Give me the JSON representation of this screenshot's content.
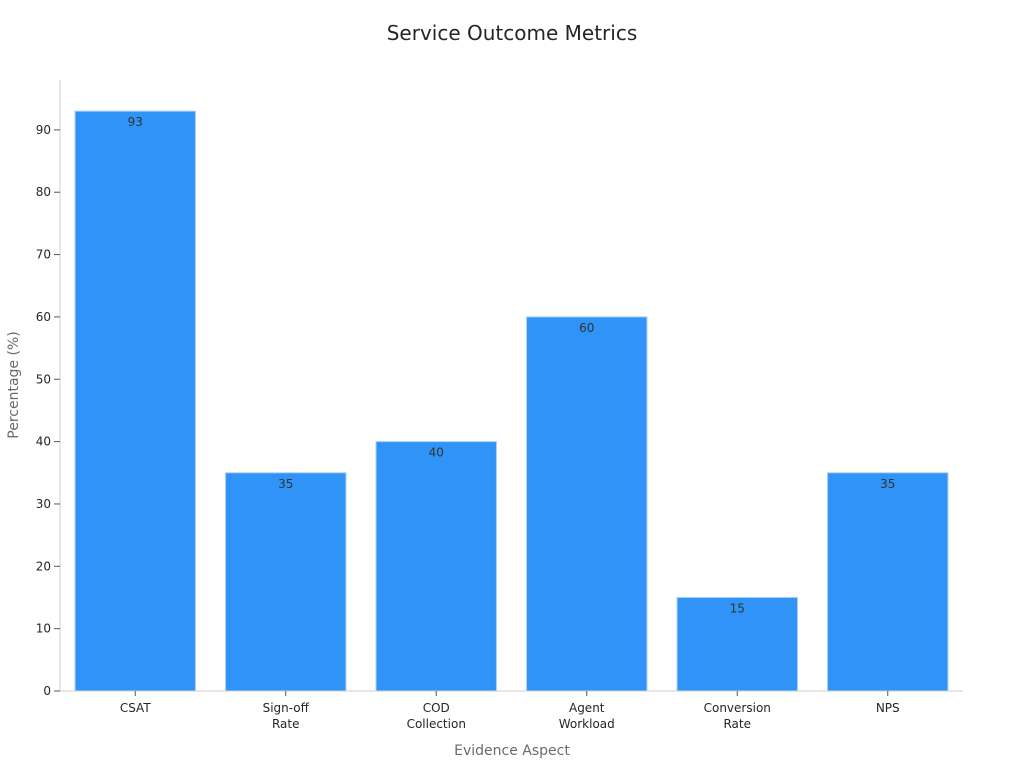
{
  "chart_data": {
    "type": "bar",
    "title": "Service Outcome Metrics",
    "xlabel": "Evidence Aspect",
    "ylabel": "Percentage (%)",
    "categories": [
      [
        "CSAT"
      ],
      [
        "Sign-off",
        "Rate"
      ],
      [
        "COD",
        "Collection"
      ],
      [
        "Agent",
        "Workload"
      ],
      [
        "Conversion",
        "Rate"
      ],
      [
        "NPS"
      ]
    ],
    "values": [
      93,
      35,
      40,
      60,
      15,
      35
    ],
    "data_labels": [
      "93",
      "35",
      "40",
      "60",
      "15",
      "35"
    ],
    "yticks": [
      0,
      10,
      20,
      30,
      40,
      50,
      60,
      70,
      80,
      90
    ],
    "ylim": [
      0,
      98
    ],
    "grid": false,
    "bar_color": "#2f93f8",
    "bar_edge_color": "#a9cdf5"
  }
}
